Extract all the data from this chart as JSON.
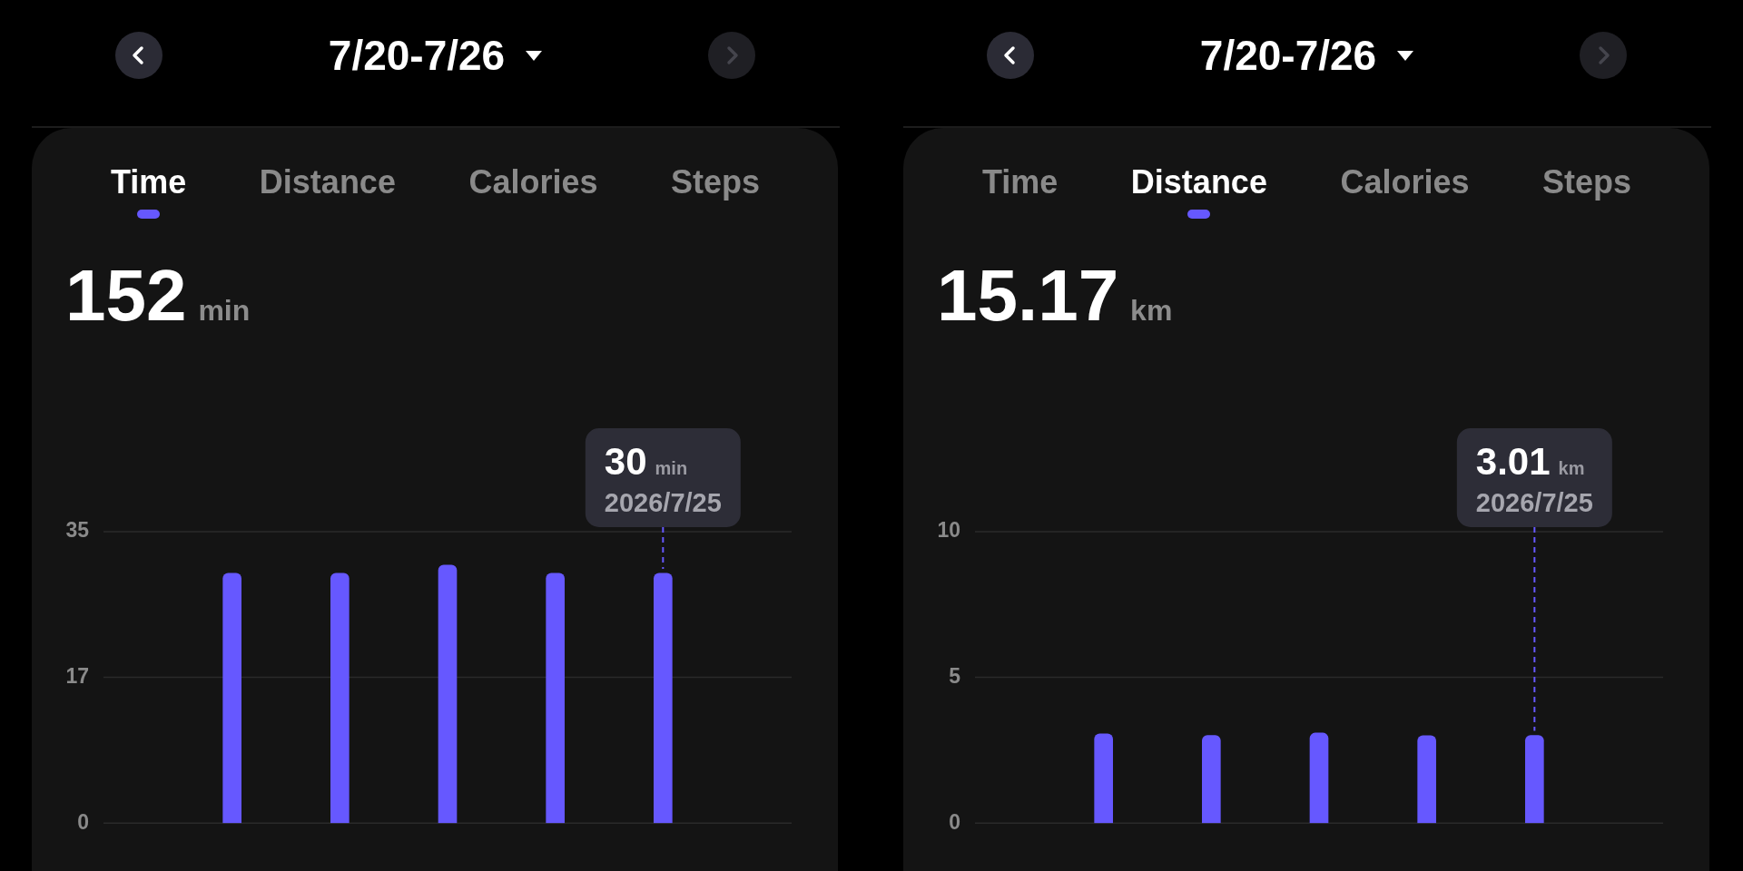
{
  "chart_data": [
    {
      "type": "bar",
      "title": "7/20-7/26",
      "subtitle": "152 min",
      "annotations": [
        "Time",
        "Distance",
        "Calories",
        "Steps",
        {
          "text": "2026/7/25",
          "y": 30
        }
      ],
      "categories": [
        null,
        null,
        null,
        null,
        null,
        null,
        null
      ],
      "values": [
        null,
        30,
        30,
        31,
        30,
        30,
        null
      ],
      "color": "#6658ff",
      "value_labels": [
        null,
        null,
        null,
        null,
        null,
        "30 min",
        null
      ],
      "ylim": [
        0,
        35
      ],
      "yticks": [
        0,
        {
          "value": 17.5,
          "label": "17"
        },
        35
      ],
      "grid": "y",
      "tick_labels": "y"
    },
    {
      "type": "bar",
      "title": "7/20-7/26",
      "subtitle": "15.17 km",
      "annotations": [
        "Time",
        "Distance",
        "Calories",
        "Steps",
        {
          "text": "2026/7/25",
          "y": 3.01
        }
      ],
      "categories": [
        null,
        null,
        null,
        null,
        null,
        null,
        null
      ],
      "values": [
        null,
        3.06,
        3.01,
        3.09,
        3.0,
        3.01,
        null
      ],
      "color": "#6658ff",
      "value_labels": [
        null,
        null,
        null,
        null,
        null,
        "3.01 km",
        null
      ],
      "ylim": [
        0,
        10
      ],
      "yticks": [
        0,
        5,
        10
      ],
      "grid": "y",
      "tick_labels": "y"
    }
  ]
}
